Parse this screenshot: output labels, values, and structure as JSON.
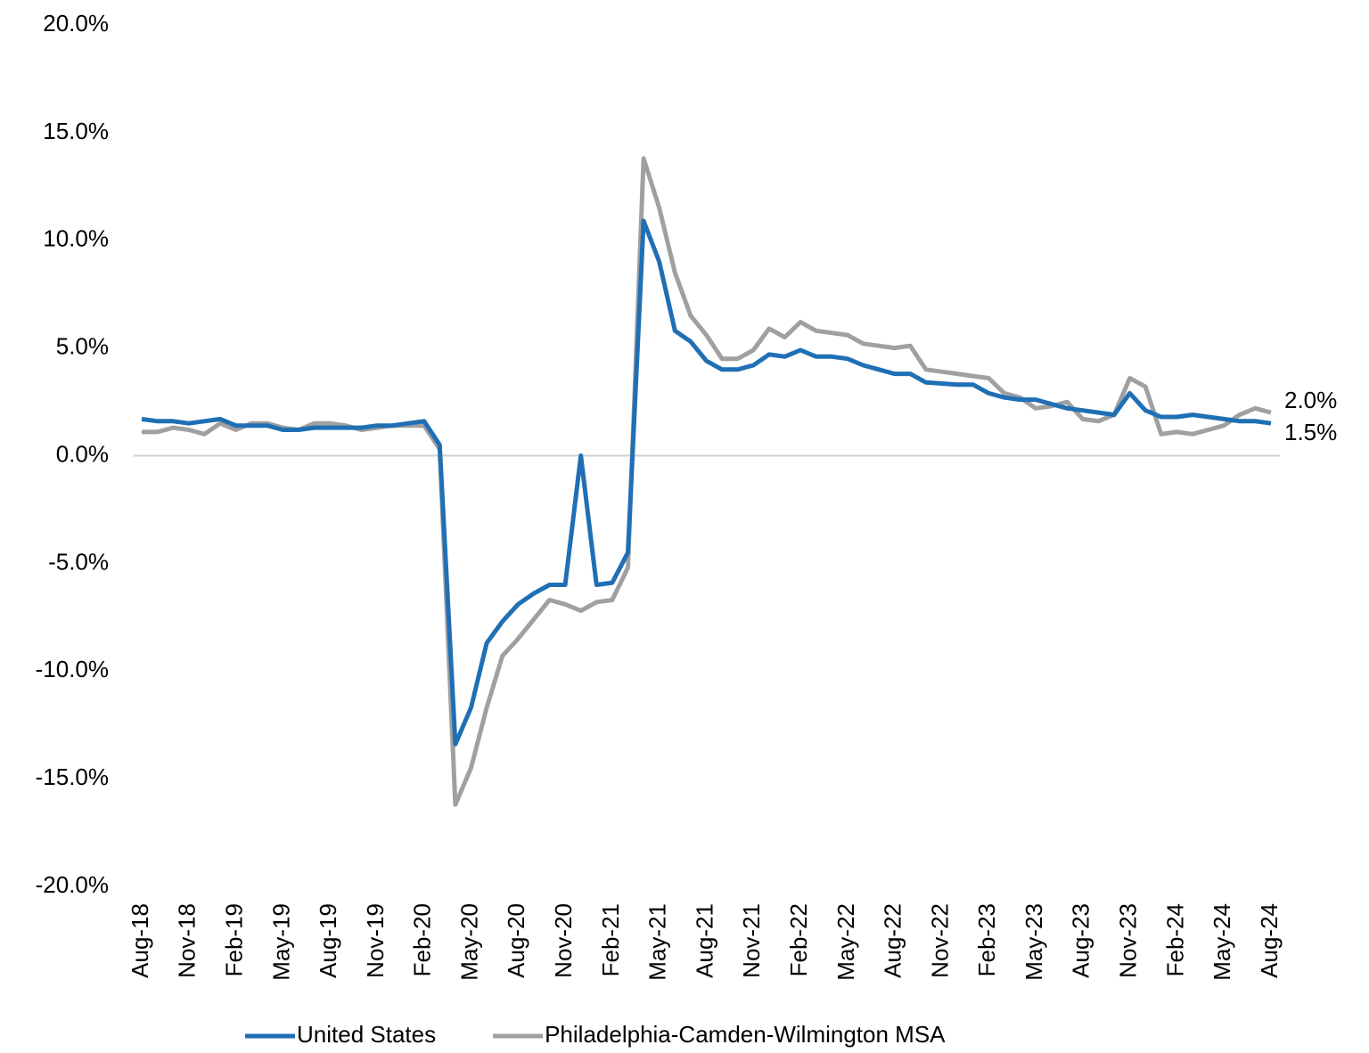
{
  "chart_data": {
    "type": "line",
    "categories": [
      "Aug-18",
      null,
      null,
      "Nov-18",
      null,
      null,
      "Feb-19",
      null,
      null,
      "May-19",
      null,
      null,
      "Aug-19",
      null,
      null,
      "Nov-19",
      null,
      null,
      "Feb-20",
      null,
      null,
      "May-20",
      null,
      null,
      "Aug-20",
      null,
      null,
      "Nov-20",
      null,
      null,
      "Feb-21",
      null,
      null,
      "May-21",
      null,
      null,
      "Aug-21",
      null,
      null,
      "Nov-21",
      null,
      null,
      "Feb-22",
      null,
      null,
      "May-22",
      null,
      null,
      "Aug-22",
      null,
      null,
      "Nov-22",
      null,
      null,
      "Feb-23",
      null,
      null,
      "May-23",
      null,
      null,
      "Aug-23",
      null,
      null,
      "Nov-23",
      null,
      null,
      "Feb-24",
      null,
      null,
      "May-24",
      null,
      null,
      "Aug-24"
    ],
    "series": [
      {
        "name": "United States",
        "color": "#1f6fb5",
        "values": [
          1.7,
          1.6,
          1.6,
          1.5,
          1.6,
          1.7,
          1.4,
          1.4,
          1.4,
          1.2,
          1.2,
          1.3,
          1.3,
          1.3,
          1.3,
          1.4,
          1.4,
          1.5,
          1.6,
          0.5,
          -13.4,
          -11.7,
          -8.7,
          -7.7,
          -6.9,
          -6.4,
          -6.0,
          -6.0,
          0.0,
          -6.0,
          -5.9,
          -4.5,
          10.9,
          9.0,
          5.8,
          5.3,
          4.4,
          4.0,
          4.0,
          4.2,
          4.7,
          4.6,
          4.9,
          4.6,
          4.6,
          4.5,
          4.2,
          4.0,
          3.8,
          3.8,
          3.4,
          3.35,
          3.3,
          3.3,
          2.9,
          2.7,
          2.6,
          2.6,
          2.4,
          2.2,
          2.1,
          2.0,
          1.9,
          2.9,
          2.1,
          1.8,
          1.8,
          1.9,
          1.8,
          1.7,
          1.6,
          1.6,
          1.5
        ],
        "value_labels": [
          null,
          null,
          null,
          null,
          null,
          null,
          null,
          null,
          null,
          null,
          null,
          null,
          null,
          null,
          null,
          null,
          null,
          null,
          null,
          null,
          null,
          null,
          null,
          null,
          null,
          null,
          null,
          null,
          null,
          null,
          null,
          null,
          null,
          null,
          null,
          null,
          null,
          null,
          null,
          null,
          null,
          null,
          null,
          null,
          null,
          null,
          null,
          null,
          null,
          null,
          null,
          null,
          null,
          null,
          null,
          null,
          null,
          null,
          null,
          null,
          null,
          null,
          null,
          null,
          null,
          null,
          null,
          null,
          null,
          null,
          null,
          null,
          "1.5%"
        ]
      },
      {
        "name": "Philadelphia-Camden-Wilmington MSA",
        "color": "#a0a0a0",
        "values": [
          1.1,
          1.1,
          1.3,
          1.2,
          1.0,
          1.5,
          1.2,
          1.5,
          1.5,
          1.3,
          1.2,
          1.5,
          1.5,
          1.4,
          1.2,
          1.3,
          1.4,
          1.4,
          1.4,
          0.3,
          -16.2,
          -14.5,
          -11.7,
          -9.3,
          -8.5,
          -7.6,
          -6.7,
          -6.9,
          -7.2,
          -6.8,
          -6.7,
          -5.2,
          13.8,
          11.5,
          8.5,
          6.5,
          5.6,
          4.5,
          4.5,
          4.9,
          5.9,
          5.5,
          6.2,
          5.8,
          5.7,
          5.6,
          5.2,
          5.1,
          5.0,
          5.1,
          4.0,
          3.9,
          3.8,
          3.7,
          3.6,
          2.9,
          2.7,
          2.2,
          2.3,
          2.5,
          1.7,
          1.6,
          1.9,
          3.6,
          3.2,
          1.0,
          1.1,
          1.0,
          1.2,
          1.4,
          1.9,
          2.2,
          2.0
        ],
        "value_labels": [
          null,
          null,
          null,
          null,
          null,
          null,
          null,
          null,
          null,
          null,
          null,
          null,
          null,
          null,
          null,
          null,
          null,
          null,
          null,
          null,
          null,
          null,
          null,
          null,
          null,
          null,
          null,
          null,
          null,
          null,
          null,
          null,
          null,
          null,
          null,
          null,
          null,
          null,
          null,
          null,
          null,
          null,
          null,
          null,
          null,
          null,
          null,
          null,
          null,
          null,
          null,
          null,
          null,
          null,
          null,
          null,
          null,
          null,
          null,
          null,
          null,
          null,
          null,
          null,
          null,
          null,
          null,
          null,
          null,
          null,
          null,
          null,
          "2.0%"
        ]
      }
    ],
    "ylim": [
      -20,
      20
    ],
    "yticks": [
      {
        "value": -20,
        "label": "-20.0%"
      },
      {
        "value": -15,
        "label": "-15.0%"
      },
      {
        "value": -10,
        "label": "-10.0%"
      },
      {
        "value": -5,
        "label": "-5.0%"
      },
      {
        "value": 0,
        "label": "0.0%"
      },
      {
        "value": 5,
        "label": "5.0%"
      },
      {
        "value": 10,
        "label": "10.0%"
      },
      {
        "value": 15,
        "label": "15.0%"
      },
      {
        "value": 20,
        "label": "20.0%"
      }
    ],
    "zero_line": true,
    "grid": false,
    "legend": "bottom"
  }
}
